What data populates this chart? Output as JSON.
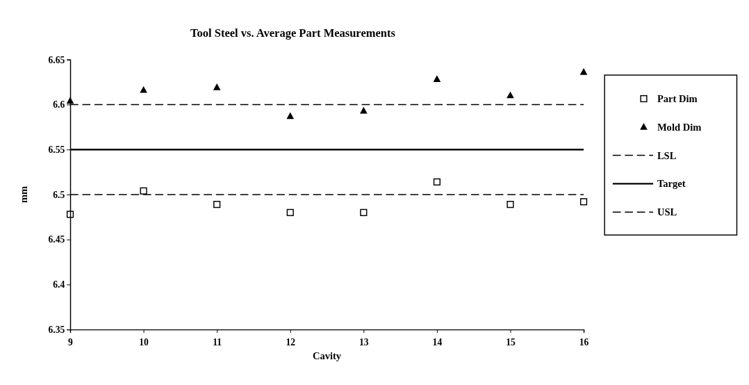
{
  "chart_data": {
    "type": "scatter",
    "title": "Tool Steel vs. Average Part Measurements",
    "xlabel": "Cavity",
    "ylabel": "mm",
    "x": [
      9,
      10,
      11,
      12,
      13,
      14,
      15,
      16
    ],
    "xlim": [
      9,
      16
    ],
    "xticks": [
      9,
      10,
      11,
      12,
      13,
      14,
      15,
      16
    ],
    "ylim": [
      6.35,
      6.65
    ],
    "yticks": [
      6.35,
      6.4,
      6.45,
      6.5,
      6.55,
      6.6,
      6.65
    ],
    "grid": false,
    "legend": "right",
    "series": [
      {
        "name": "Part Dim",
        "marker": "square",
        "color": "#000000",
        "values": [
          6.478,
          6.504,
          6.489,
          6.48,
          6.48,
          6.514,
          6.489,
          6.492
        ]
      },
      {
        "name": "Mold Dim",
        "marker": "triangle",
        "color": "#000000",
        "values": [
          6.604,
          6.616,
          6.619,
          6.587,
          6.593,
          6.628,
          6.61,
          6.636
        ]
      }
    ],
    "ref_lines": [
      {
        "axis": "y",
        "value": 6.6,
        "label": "LSL",
        "line_style": "dashed",
        "color": "#000000"
      },
      {
        "axis": "y",
        "value": 6.55,
        "label": "Target",
        "line_style": "solid",
        "color": "#000000"
      },
      {
        "axis": "y",
        "value": 6.5,
        "label": "USL",
        "line_style": "dashed",
        "color": "#000000"
      }
    ]
  }
}
